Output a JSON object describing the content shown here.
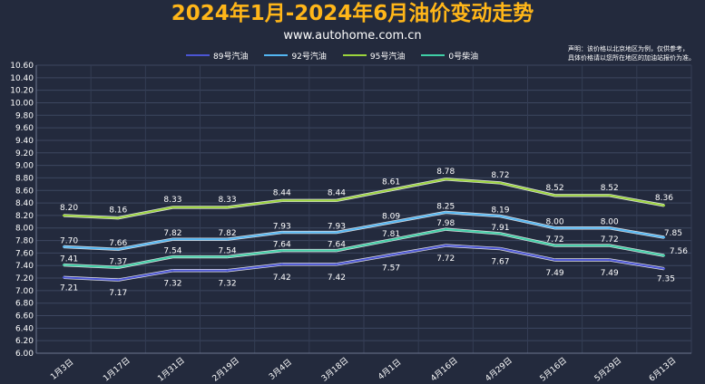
{
  "header": {
    "title": "2024年1月-2024年6月油价变动走势",
    "subtitle": "www.autohome.com.cn",
    "note_line1": "声明：该价格以北京地区为例，仅供参考，",
    "note_line2": "具体价格请以您所在地区的加油站报价为准。"
  },
  "chart_data": {
    "type": "line",
    "title": "2024年1月-2024年6月油价变动走势",
    "categories": [
      "1月3日",
      "1月17日",
      "1月31日",
      "2月19日",
      "3月4日",
      "3月18日",
      "4月1日",
      "4月16日",
      "4月29日",
      "5月16日",
      "5月29日",
      "6月13日"
    ],
    "ylim": [
      6.0,
      10.6
    ],
    "ytick_step": 0.2,
    "grid": true,
    "legend_position": "top",
    "series": [
      {
        "name": "89号汽油",
        "color": "#4b55d4",
        "values": [
          7.21,
          7.17,
          7.32,
          7.32,
          7.42,
          7.42,
          7.57,
          7.72,
          7.67,
          7.49,
          7.49,
          7.35
        ]
      },
      {
        "name": "92号汽油",
        "color": "#53b6f2",
        "values": [
          7.7,
          7.66,
          7.82,
          7.82,
          7.93,
          7.93,
          8.09,
          8.25,
          8.19,
          8.0,
          8.0,
          7.85
        ]
      },
      {
        "name": "95号汽油",
        "color": "#9bd43c",
        "values": [
          8.2,
          8.16,
          8.33,
          8.33,
          8.44,
          8.44,
          8.61,
          8.78,
          8.72,
          8.52,
          8.52,
          8.36
        ]
      },
      {
        "name": "0号柴油",
        "color": "#3fcfa6",
        "values": [
          7.41,
          7.37,
          7.54,
          7.54,
          7.64,
          7.64,
          7.81,
          7.98,
          7.91,
          7.72,
          7.72,
          7.56
        ]
      }
    ]
  }
}
